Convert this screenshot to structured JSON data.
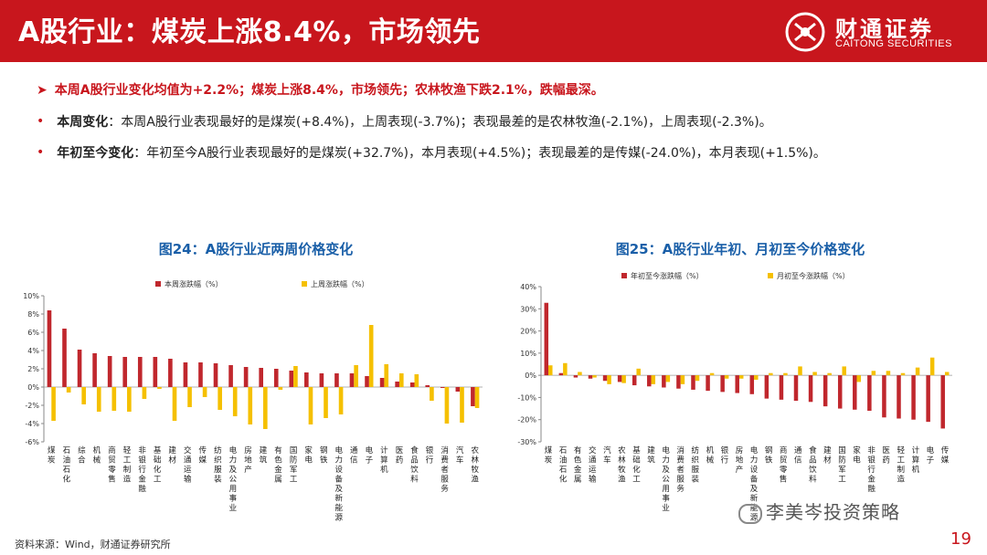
{
  "header": {
    "title": "A股行业：煤炭上涨8.4%，市场领先",
    "brand_cn": "财通证券",
    "brand_en": "CAITONG SECURITIES",
    "brand_color": "#c8161d"
  },
  "bullets": {
    "main": "本周A股行业变化均值为+2.2%；煤炭上涨8.4%，市场领先；农林牧渔下跌2.1%，跌幅最深。",
    "weekly_label": "本周变化",
    "weekly_text": "：本周A股行业表现最好的是煤炭(+8.4%)，上周表现(-3.7%)；表现最差的是农林牧渔(-2.1%)，上周表现(-2.3%)。",
    "ytd_label": "年初至今变化",
    "ytd_text": "：年初至今A股行业表现最好的是煤炭(+32.7%)，本月表现(+4.5%)；表现最差的是传媒(-24.0%)，本月表现(+1.5%)。"
  },
  "chart_data": [
    {
      "type": "bar",
      "title": "图24：A股行业近两周价格变化",
      "ylim": [
        -6,
        10
      ],
      "yticks": [
        "10%",
        "8%",
        "6%",
        "4%",
        "2%",
        "0%",
        "-2%",
        "-4%",
        "-6%"
      ],
      "legend_position": "top",
      "categories": [
        "煤炭",
        "石油石化",
        "综合",
        "机械",
        "商贸零售",
        "轻工制造",
        "非银行金融",
        "基础化工",
        "建材",
        "交通运输",
        "传媒",
        "纺织服装",
        "电力及公用事业",
        "房地产",
        "建筑",
        "有色金属",
        "国防军工",
        "家电",
        "钢铁",
        "电力设备及新能源",
        "通信",
        "电子",
        "计算机",
        "医药",
        "食品饮料",
        "银行",
        "消费者服务",
        "汽车",
        "农林牧渔"
      ],
      "series": [
        {
          "name": "本周涨跌幅（%）",
          "color": "#c0272d",
          "values": [
            8.4,
            6.4,
            4.1,
            3.7,
            3.4,
            3.3,
            3.3,
            3.3,
            3.1,
            2.7,
            2.7,
            2.6,
            2.4,
            2.2,
            2.1,
            2.0,
            1.8,
            1.6,
            1.5,
            1.5,
            1.5,
            1.2,
            1.0,
            0.6,
            0.5,
            0.2,
            -0.1,
            -0.5,
            -2.1
          ]
        },
        {
          "name": "上周涨跌幅（%）",
          "color": "#f5c000",
          "values": [
            -3.7,
            -0.6,
            -1.9,
            -2.7,
            -2.6,
            -2.7,
            -1.3,
            -0.2,
            -3.7,
            -2.2,
            -1.1,
            -2.5,
            -3.2,
            -4.1,
            -4.6,
            -0.3,
            2.3,
            -4.1,
            -3.4,
            -3.0,
            2.4,
            6.8,
            2.5,
            1.5,
            1.4,
            -1.5,
            -4.0,
            -3.9,
            -2.3
          ]
        }
      ]
    },
    {
      "type": "bar",
      "title": "图25：A股行业年初、月初至今价格变化",
      "ylim": [
        -30,
        40
      ],
      "yticks": [
        "40%",
        "30%",
        "20%",
        "10%",
        "0%",
        "-10%",
        "-20%",
        "-30%"
      ],
      "legend_position": "top",
      "categories": [
        "煤炭",
        "石油石化",
        "有色金属",
        "交通运输",
        "汽车",
        "农林牧渔",
        "基础化工",
        "建筑",
        "电力及公用事业",
        "消费者服务",
        "纺织服装",
        "机械",
        "银行",
        "房地产",
        "电力设备及新能源",
        "钢铁",
        "商贸零售",
        "通信",
        "食品饮料",
        "建材",
        "国防军工",
        "家电",
        "非银行金融",
        "医药",
        "轻工制造",
        "计算机",
        "电子",
        "传媒"
      ],
      "series": [
        {
          "name": "年初至今涨跌幅（%）",
          "color": "#c0272d",
          "values": [
            32.7,
            1.0,
            -1.0,
            -1.5,
            -2.5,
            -3.0,
            -4.5,
            -5.0,
            -5.5,
            -6.0,
            -6.5,
            -7.0,
            -7.5,
            -8.0,
            -8.5,
            -10.5,
            -11.0,
            -11.5,
            -12.0,
            -14.0,
            -15.0,
            -15.5,
            -16.0,
            -19.0,
            -19.5,
            -20.0,
            -21.0,
            -24.0
          ]
        },
        {
          "name": "月初至今涨跌幅（%）",
          "color": "#f5c000",
          "values": [
            4.5,
            5.5,
            1.5,
            -1.0,
            -4.0,
            -3.5,
            3.0,
            -4.0,
            -3.0,
            -4.0,
            -2.5,
            1.0,
            -1.5,
            -1.5,
            -2.0,
            1.0,
            1.0,
            4.0,
            1.5,
            1.0,
            4.0,
            -3.0,
            2.0,
            2.0,
            1.0,
            3.5,
            8.0,
            1.5
          ]
        }
      ]
    }
  ],
  "footer": {
    "source": "资料来源：Wind，财通证券研究所",
    "page": "19",
    "watermark": "李美岑投资策略"
  }
}
